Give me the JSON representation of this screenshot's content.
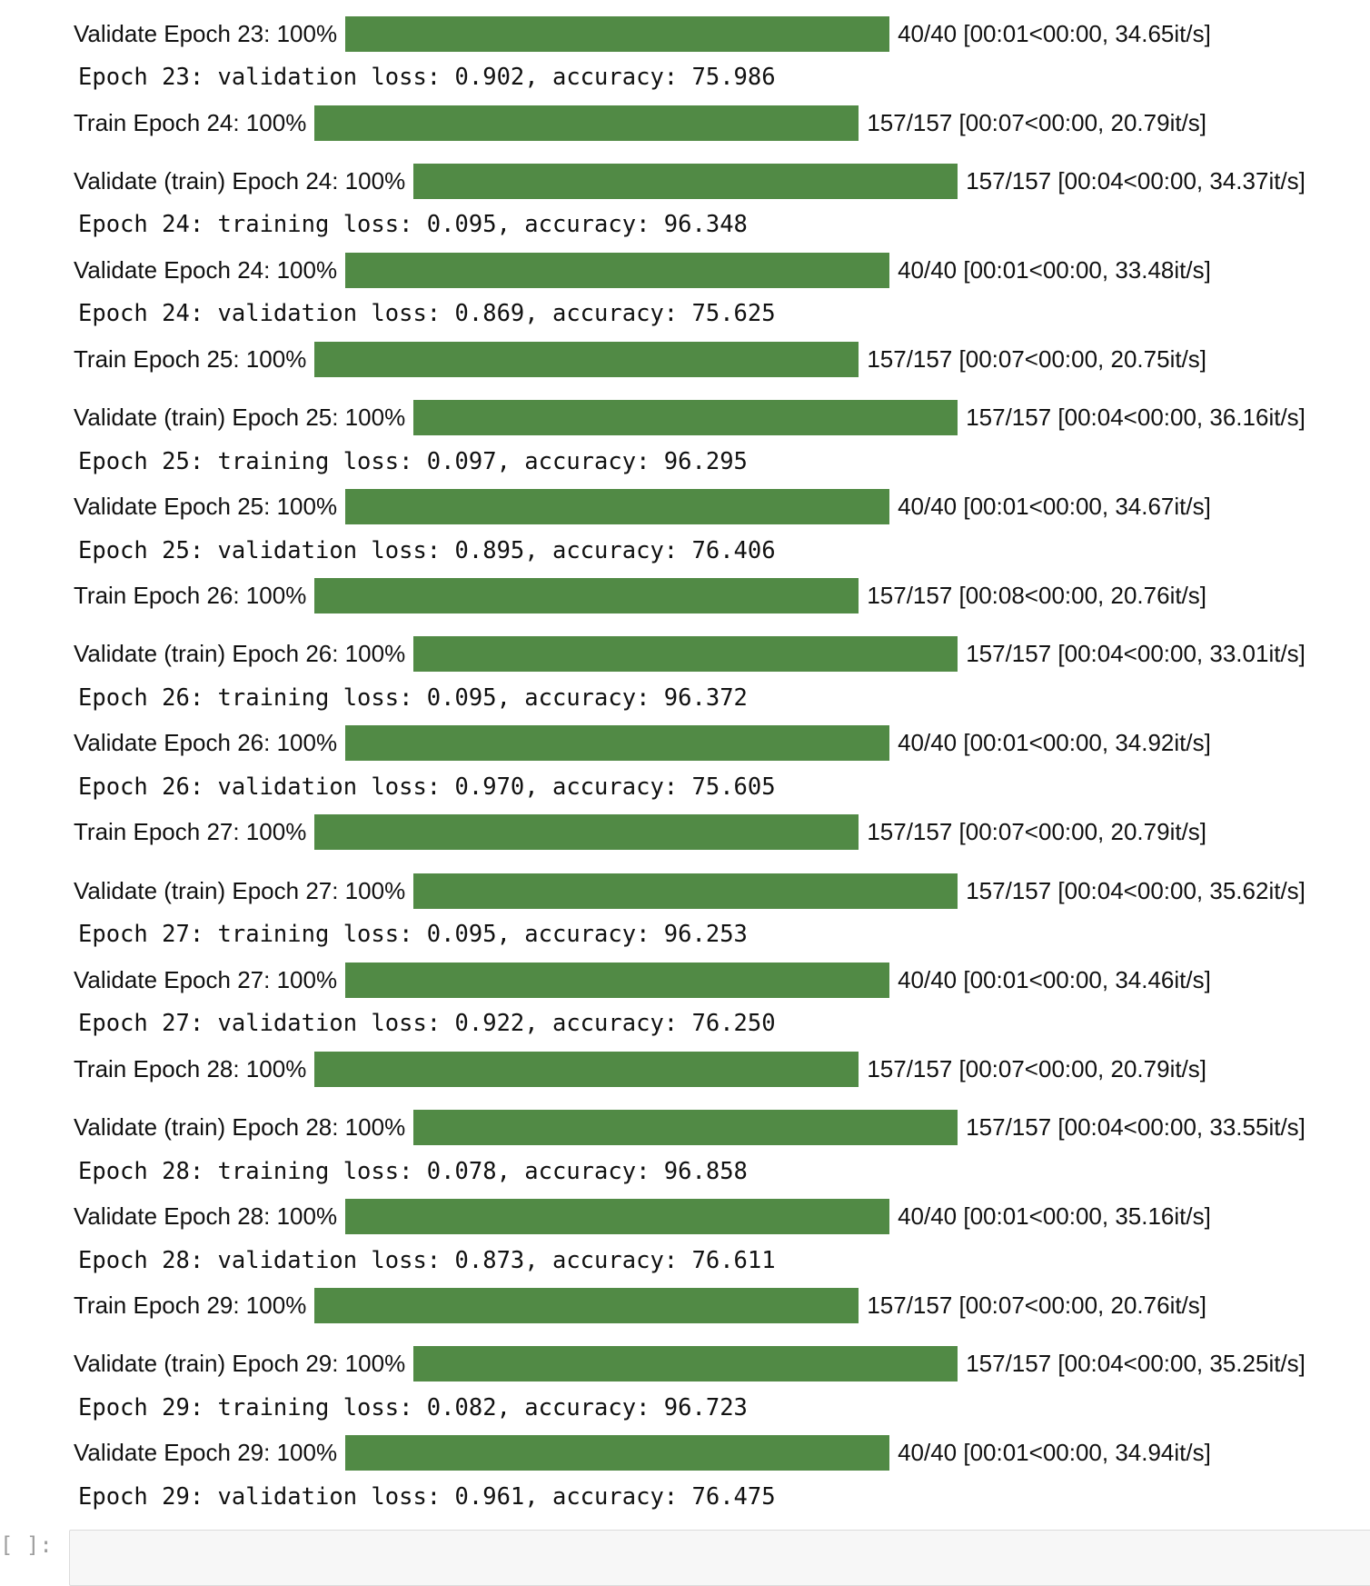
{
  "output": {
    "rows": [
      {
        "kind": "progress",
        "label": "Validate Epoch 23: 100%",
        "stats": "40/40 [00:01<00:00, 34.65it/s]"
      },
      {
        "kind": "log",
        "text": "Epoch 23: validation loss: 0.902, accuracy: 75.986"
      },
      {
        "kind": "progress",
        "label": "Train Epoch 24: 100%",
        "stats": "157/157 [00:07<00:00, 20.79it/s]"
      },
      {
        "kind": "progress",
        "label": "Validate (train) Epoch 24: 100%",
        "stats": "157/157 [00:04<00:00, 34.37it/s]"
      },
      {
        "kind": "log",
        "text": "Epoch 24: training loss: 0.095, accuracy: 96.348"
      },
      {
        "kind": "progress",
        "label": "Validate Epoch 24: 100%",
        "stats": "40/40 [00:01<00:00, 33.48it/s]"
      },
      {
        "kind": "log",
        "text": "Epoch 24: validation loss: 0.869, accuracy: 75.625"
      },
      {
        "kind": "progress",
        "label": "Train Epoch 25: 100%",
        "stats": "157/157 [00:07<00:00, 20.75it/s]"
      },
      {
        "kind": "progress",
        "label": "Validate (train) Epoch 25: 100%",
        "stats": "157/157 [00:04<00:00, 36.16it/s]"
      },
      {
        "kind": "log",
        "text": "Epoch 25: training loss: 0.097, accuracy: 96.295"
      },
      {
        "kind": "progress",
        "label": "Validate Epoch 25: 100%",
        "stats": "40/40 [00:01<00:00, 34.67it/s]"
      },
      {
        "kind": "log",
        "text": "Epoch 25: validation loss: 0.895, accuracy: 76.406"
      },
      {
        "kind": "progress",
        "label": "Train Epoch 26: 100%",
        "stats": "157/157 [00:08<00:00, 20.76it/s]"
      },
      {
        "kind": "progress",
        "label": "Validate (train) Epoch 26: 100%",
        "stats": "157/157 [00:04<00:00, 33.01it/s]"
      },
      {
        "kind": "log",
        "text": "Epoch 26: training loss: 0.095, accuracy: 96.372"
      },
      {
        "kind": "progress",
        "label": "Validate Epoch 26: 100%",
        "stats": "40/40 [00:01<00:00, 34.92it/s]"
      },
      {
        "kind": "log",
        "text": "Epoch 26: validation loss: 0.970, accuracy: 75.605"
      },
      {
        "kind": "progress",
        "label": "Train Epoch 27: 100%",
        "stats": "157/157 [00:07<00:00, 20.79it/s]"
      },
      {
        "kind": "progress",
        "label": "Validate (train) Epoch 27: 100%",
        "stats": "157/157 [00:04<00:00, 35.62it/s]"
      },
      {
        "kind": "log",
        "text": "Epoch 27: training loss: 0.095, accuracy: 96.253"
      },
      {
        "kind": "progress",
        "label": "Validate Epoch 27: 100%",
        "stats": "40/40 [00:01<00:00, 34.46it/s]"
      },
      {
        "kind": "log",
        "text": "Epoch 27: validation loss: 0.922, accuracy: 76.250"
      },
      {
        "kind": "progress",
        "label": "Train Epoch 28: 100%",
        "stats": "157/157 [00:07<00:00, 20.79it/s]"
      },
      {
        "kind": "progress",
        "label": "Validate (train) Epoch 28: 100%",
        "stats": "157/157 [00:04<00:00, 33.55it/s]"
      },
      {
        "kind": "log",
        "text": "Epoch 28: training loss: 0.078, accuracy: 96.858"
      },
      {
        "kind": "progress",
        "label": "Validate Epoch 28: 100%",
        "stats": "40/40 [00:01<00:00, 35.16it/s]"
      },
      {
        "kind": "log",
        "text": "Epoch 28: validation loss: 0.873, accuracy: 76.611"
      },
      {
        "kind": "progress",
        "label": "Train Epoch 29: 100%",
        "stats": "157/157 [00:07<00:00, 20.76it/s]"
      },
      {
        "kind": "progress",
        "label": "Validate (train) Epoch 29: 100%",
        "stats": "157/157 [00:04<00:00, 35.25it/s]"
      },
      {
        "kind": "log",
        "text": "Epoch 29: training loss: 0.082, accuracy: 96.723"
      },
      {
        "kind": "progress",
        "label": "Validate Epoch 29: 100%",
        "stats": "40/40 [00:01<00:00, 34.94it/s]"
      },
      {
        "kind": "log",
        "text": "Epoch 29: validation loss: 0.961, accuracy: 76.475"
      }
    ]
  },
  "next_cell": {
    "prompt": "[ ]:"
  }
}
